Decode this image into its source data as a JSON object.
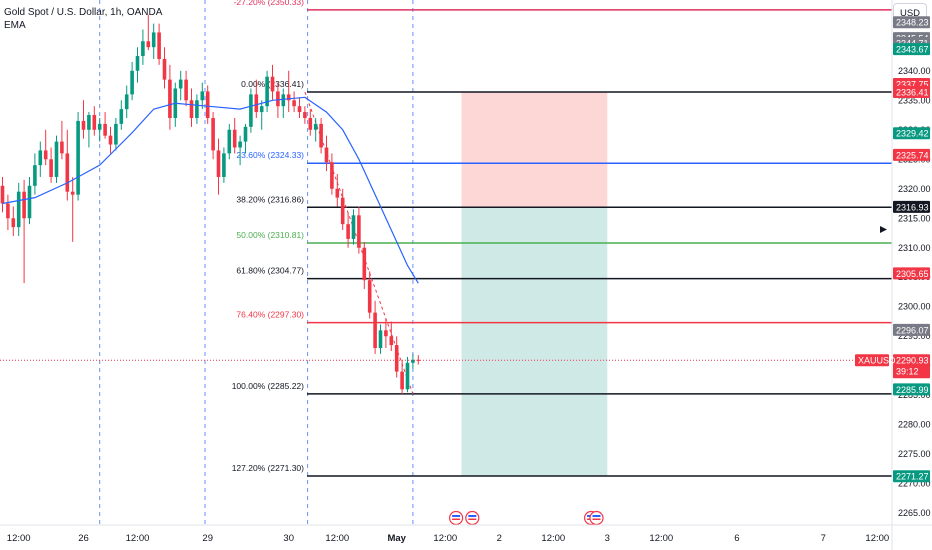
{
  "header": {
    "symbol_title": "Gold Spot / U.S. Dollar, 1h, OANDA",
    "indicator": "EMA",
    "currency": "USD"
  },
  "colors": {
    "up": "#089981",
    "down": "#f23645",
    "ema": "#2962ff",
    "grid_dash": "#2962ff",
    "fib_neg": "#e0315e",
    "fib_236": "#2962ff",
    "fib_50": "#4caf50",
    "fib_764": "#f23645",
    "stop_zone": "#fcd7d5",
    "target_zone": "#cfe9e6"
  },
  "chart_data": {
    "type": "candlestick",
    "title": "Gold Spot / U.S. Dollar, 1h, OANDA",
    "symbol": "XAUUSD",
    "ylim": [
      2263,
      2352
    ],
    "y_ticks": [
      2265,
      2270,
      2275,
      2280,
      2285,
      2290,
      2295,
      2300,
      2305,
      2310,
      2315,
      2320,
      2325,
      2330,
      2335,
      2340
    ],
    "x_ticks": [
      {
        "label": "12:00",
        "i": 3
      },
      {
        "label": "26",
        "i": 15
      },
      {
        "label": "12:00",
        "i": 25
      },
      {
        "label": "29",
        "i": 38
      },
      {
        "label": "30",
        "i": 53
      },
      {
        "label": "12:00",
        "i": 62
      },
      {
        "label": "May",
        "i": 73
      },
      {
        "label": "12:00",
        "i": 82
      },
      {
        "label": "2",
        "i": 92
      },
      {
        "label": "12:00",
        "i": 102
      },
      {
        "label": "3",
        "i": 112
      },
      {
        "label": "12:00",
        "i": 122
      },
      {
        "label": "6",
        "i": 136
      },
      {
        "label": "7",
        "i": 152
      },
      {
        "label": "12:00",
        "i": 162
      }
    ],
    "session_breaks": [
      18,
      37.5,
      56.5,
      76
    ],
    "fib_levels": [
      {
        "ratio": "-27.20%",
        "label": "-27.20% (2350.33)",
        "price": 2350.33,
        "color": "#e0315e"
      },
      {
        "ratio": "0.00%",
        "label": "0.00% (2336.41)",
        "price": 2336.41,
        "color": "#131722"
      },
      {
        "ratio": "23.60%",
        "label": "23.60% (2324.33)",
        "price": 2324.33,
        "color": "#2962ff"
      },
      {
        "ratio": "38.20%",
        "label": "38.20% (2316.86)",
        "price": 2316.86,
        "color": "#131722"
      },
      {
        "ratio": "50.00%",
        "label": "50.00% (2310.81)",
        "price": 2310.81,
        "color": "#4caf50"
      },
      {
        "ratio": "61.80%",
        "label": "61.80% (2304.77)",
        "price": 2304.77,
        "color": "#131722"
      },
      {
        "ratio": "76.40%",
        "label": "76.40% (2297.30)",
        "price": 2297.3,
        "color": "#f23645"
      },
      {
        "ratio": "100.00%",
        "label": "100.00% (2285.22)",
        "price": 2285.22,
        "color": "#131722"
      },
      {
        "ratio": "127.20%",
        "label": "127.20% (2271.30)",
        "price": 2271.3,
        "color": "#131722"
      }
    ],
    "position": {
      "entry": 2316.86,
      "stop": 2336.41,
      "target": 2271.3,
      "from_i": 85,
      "to_i": 112
    },
    "price_labels": [
      {
        "text": "2348.23",
        "price": 2348.23,
        "bg": "#787b86"
      },
      {
        "text": "2345.54",
        "price": 2345.54,
        "bg": "#787b86"
      },
      {
        "text": "2344.71",
        "price": 2344.71,
        "bg": "#787b86"
      },
      {
        "text": "2343.67",
        "price": 2343.67,
        "bg": "#089981"
      },
      {
        "text": "2337.75",
        "price": 2337.75,
        "bg": "#f23645"
      },
      {
        "text": "2336.41",
        "price": 2336.41,
        "bg": "#f23645"
      },
      {
        "text": "2329.42",
        "price": 2329.42,
        "bg": "#089981"
      },
      {
        "text": "2325.74",
        "price": 2325.74,
        "bg": "#f23645"
      },
      {
        "text": "2316.93",
        "price": 2316.93,
        "bg": "#131722"
      },
      {
        "text": "2305.65",
        "price": 2305.65,
        "bg": "#f23645"
      },
      {
        "text": "2296.07",
        "price": 2296.07,
        "bg": "#787b86"
      },
      {
        "text": "2285.99",
        "price": 2285.99,
        "bg": "#089981"
      },
      {
        "text": "2271.27",
        "price": 2271.27,
        "bg": "#089981"
      }
    ],
    "last_price": {
      "symbol": "XAUUSD",
      "price": "2290.93",
      "countdown": "39:12",
      "value": 2290.93
    },
    "event_flag_indices": [
      84,
      87,
      109,
      110
    ],
    "candles": [
      [
        2320.5,
        2322.0,
        2316.0,
        2317.5
      ],
      [
        2317.5,
        2319.0,
        2313.0,
        2315.0
      ],
      [
        2315.0,
        2317.0,
        2312.0,
        2313.5
      ],
      [
        2313.5,
        2321.0,
        2312.0,
        2319.5
      ],
      [
        2319.5,
        2321.5,
        2304.0,
        2315.0
      ],
      [
        2315.0,
        2322.0,
        2314.0,
        2320.5
      ],
      [
        2320.5,
        2326.0,
        2319.0,
        2324.0
      ],
      [
        2324.0,
        2328.0,
        2322.0,
        2326.5
      ],
      [
        2326.5,
        2330.0,
        2324.0,
        2325.0
      ],
      [
        2325.0,
        2327.0,
        2321.0,
        2322.0
      ],
      [
        2322.0,
        2329.0,
        2321.0,
        2328.0
      ],
      [
        2328.0,
        2331.5,
        2325.0,
        2326.0
      ],
      [
        2326.0,
        2330.0,
        2318.0,
        2319.5
      ],
      [
        2319.5,
        2322.0,
        2311.0,
        2319.0
      ],
      [
        2319.0,
        2333.0,
        2318.0,
        2331.5
      ],
      [
        2331.5,
        2335.0,
        2328.5,
        2330.0
      ],
      [
        2330.0,
        2333.0,
        2327.0,
        2332.5
      ],
      [
        2332.5,
        2334.0,
        2329.0,
        2330.0
      ],
      [
        2330.0,
        2332.0,
        2328.0,
        2331.0
      ],
      [
        2331.0,
        2333.0,
        2328.5,
        2329.0
      ],
      [
        2329.0,
        2330.5,
        2326.0,
        2327.5
      ],
      [
        2327.5,
        2332.0,
        2326.5,
        2331.0
      ],
      [
        2331.0,
        2335.0,
        2330.0,
        2333.5
      ],
      [
        2333.5,
        2337.5,
        2332.0,
        2336.0
      ],
      [
        2336.0,
        2341.5,
        2335.0,
        2340.0
      ],
      [
        2340.0,
        2344.0,
        2338.0,
        2342.5
      ],
      [
        2342.5,
        2347.0,
        2341.0,
        2345.0
      ],
      [
        2345.0,
        2349.5,
        2343.5,
        2344.0
      ],
      [
        2344.0,
        2348.0,
        2342.0,
        2346.5
      ],
      [
        2346.5,
        2348.0,
        2341.0,
        2342.0
      ],
      [
        2342.0,
        2344.0,
        2337.0,
        2338.5
      ],
      [
        2338.5,
        2341.0,
        2330.0,
        2332.0
      ],
      [
        2332.0,
        2338.0,
        2330.5,
        2337.0
      ],
      [
        2337.0,
        2340.0,
        2335.0,
        2338.5
      ],
      [
        2338.5,
        2340.0,
        2334.0,
        2335.0
      ],
      [
        2335.0,
        2337.0,
        2330.5,
        2332.0
      ],
      [
        2332.0,
        2336.0,
        2331.0,
        2335.0
      ],
      [
        2335.0,
        2338.0,
        2333.5,
        2336.5
      ],
      [
        2336.5,
        2337.5,
        2331.0,
        2332.0
      ],
      [
        2332.0,
        2333.0,
        2325.0,
        2326.5
      ],
      [
        2326.5,
        2328.5,
        2319.0,
        2322.0
      ],
      [
        2322.0,
        2327.0,
        2321.0,
        2326.0
      ],
      [
        2326.0,
        2331.0,
        2325.0,
        2330.0
      ],
      [
        2330.0,
        2332.0,
        2326.0,
        2327.0
      ],
      [
        2327.0,
        2329.0,
        2324.0,
        2328.0
      ],
      [
        2328.0,
        2331.0,
        2326.0,
        2330.5
      ],
      [
        2330.5,
        2337.0,
        2329.5,
        2336.0
      ],
      [
        2336.0,
        2338.5,
        2332.0,
        2333.0
      ],
      [
        2333.0,
        2335.0,
        2330.0,
        2334.0
      ],
      [
        2334.0,
        2340.0,
        2333.0,
        2339.0
      ],
      [
        2339.0,
        2341.0,
        2335.0,
        2336.5
      ],
      [
        2336.5,
        2338.0,
        2332.0,
        2334.0
      ],
      [
        2334.0,
        2337.0,
        2332.0,
        2336.0
      ],
      [
        2336.0,
        2340.0,
        2333.0,
        2335.0
      ],
      [
        2335.0,
        2336.5,
        2333.0,
        2334.0
      ],
      [
        2334.0,
        2335.5,
        2332.0,
        2333.0
      ],
      [
        2333.0,
        2334.0,
        2331.0,
        2332.0
      ],
      [
        2332.0,
        2333.5,
        2329.0,
        2330.0
      ],
      [
        2330.0,
        2332.0,
        2328.0,
        2331.0
      ],
      [
        2331.0,
        2332.0,
        2326.0,
        2327.0
      ],
      [
        2327.0,
        2329.0,
        2323.0,
        2324.5
      ],
      [
        2324.5,
        2326.0,
        2319.0,
        2320.0
      ],
      [
        2320.0,
        2322.5,
        2317.0,
        2318.5
      ],
      [
        2318.5,
        2320.0,
        2313.0,
        2314.0
      ],
      [
        2314.0,
        2316.0,
        2310.0,
        2311.5
      ],
      [
        2311.5,
        2316.5,
        2310.5,
        2315.5
      ],
      [
        2315.5,
        2317.0,
        2309.0,
        2310.0
      ],
      [
        2310.0,
        2311.0,
        2303.0,
        2304.5
      ],
      [
        2304.5,
        2306.0,
        2298.0,
        2299.0
      ],
      [
        2299.0,
        2301.0,
        2292.0,
        2293.0
      ],
      [
        2293.0,
        2297.0,
        2292.0,
        2296.0
      ],
      [
        2296.0,
        2298.0,
        2293.0,
        2295.0
      ],
      [
        2295.0,
        2297.5,
        2292.5,
        2293.5
      ],
      [
        2293.5,
        2295.0,
        2288.0,
        2289.0
      ],
      [
        2289.0,
        2291.0,
        2285.2,
        2286.0
      ],
      [
        2286.0,
        2291.5,
        2285.5,
        2290.5
      ],
      [
        2290.5,
        2292.0,
        2289.5,
        2291.0
      ],
      [
        2291.0,
        2291.8,
        2290.2,
        2290.9
      ]
    ],
    "ema": [
      [
        0,
        2317.5
      ],
      [
        6,
        2318.5
      ],
      [
        12,
        2321.0
      ],
      [
        18,
        2324.0
      ],
      [
        24,
        2329.5
      ],
      [
        28,
        2333.5
      ],
      [
        32,
        2334.5
      ],
      [
        38,
        2334.0
      ],
      [
        44,
        2333.5
      ],
      [
        50,
        2335.0
      ],
      [
        56,
        2335.5
      ],
      [
        60,
        2333.0
      ],
      [
        63,
        2330.0
      ],
      [
        66,
        2325.0
      ],
      [
        69,
        2319.0
      ],
      [
        72,
        2313.0
      ],
      [
        75,
        2307.0
      ],
      [
        77,
        2304.0
      ]
    ],
    "trend_line": [
      [
        56,
        2336.4
      ],
      [
        76,
        2285.2
      ]
    ]
  }
}
